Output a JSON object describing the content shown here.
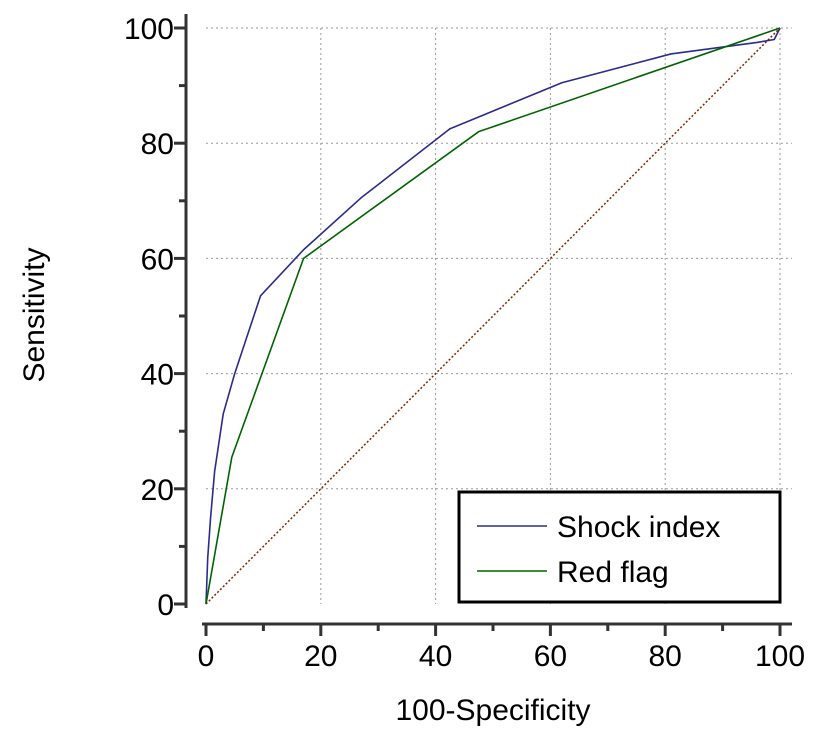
{
  "chart_data": {
    "type": "line",
    "xlabel": "100-Specificity",
    "ylabel": "Sensitivity",
    "xlim": [
      0,
      100
    ],
    "ylim": [
      0,
      100
    ],
    "xticks": [
      "0",
      "20",
      "40",
      "60",
      "80",
      "100"
    ],
    "yticks": [
      "0",
      "20",
      "40",
      "60",
      "80",
      "100"
    ],
    "grid": true,
    "legend_position": "bottom-right",
    "series": [
      {
        "name": "Shock index",
        "color": "#2b2b8c",
        "x": [
          0,
          0.3,
          0.8,
          1.5,
          3,
          5,
          7,
          9.5,
          17,
          27,
          42.5,
          62,
          81,
          96,
          99,
          100
        ],
        "y": [
          0,
          8,
          15,
          23,
          33,
          40,
          46,
          53.5,
          61.5,
          70.5,
          82.5,
          90.5,
          95.5,
          97.5,
          98,
          100
        ]
      },
      {
        "name": "Red flag",
        "color": "#006400",
        "x": [
          0,
          4.5,
          17,
          47.5,
          100
        ],
        "y": [
          0,
          25.5,
          60,
          82,
          100
        ]
      }
    ],
    "reference_line": {
      "color": "#8b2500",
      "style": "dotted",
      "x": [
        0,
        100
      ],
      "y": [
        0,
        100
      ]
    }
  }
}
